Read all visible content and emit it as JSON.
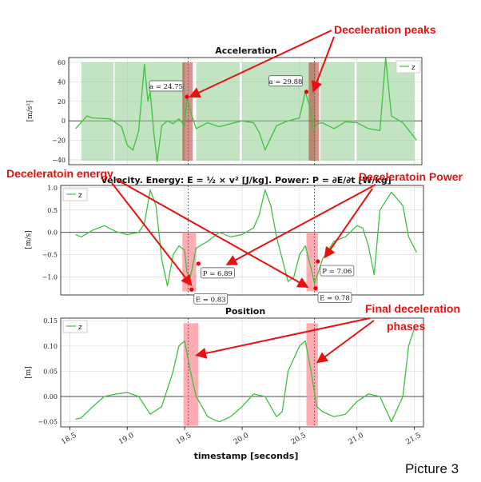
{
  "caption": "Picture 3",
  "colors": {
    "series": "#3cc23c",
    "window_fill": "#8fce8f",
    "peak_band": "#b03a2e",
    "phase_fill": "#ff9ea6",
    "annotation": "#e8110f",
    "guide": "#5a5ae0"
  },
  "annotations": {
    "decel_peaks": "Deceleration peaks",
    "decel_energy": "Deceleratoin energy",
    "decel_power": "Deceleratoin Power",
    "final_phases_1": "Final deceleration",
    "final_phases_2": "phases"
  },
  "xaxis": {
    "label": "timestamp [seconds]",
    "ticks": [
      "18.5",
      "19.0",
      "19.5",
      "20.0",
      "20.5",
      "21.0",
      "21.5"
    ]
  },
  "chart_data": [
    {
      "type": "line",
      "title": "Acceleration",
      "ylabel": "[m/s²]",
      "xlim": [
        18.4,
        21.6
      ],
      "ylim": [
        -45,
        65
      ],
      "yticks": [
        "−40",
        "−20",
        "0",
        "20",
        "40",
        "60"
      ],
      "legend": "top-right",
      "grid": true,
      "series": [
        {
          "name": "z",
          "x": [
            18.55,
            18.65,
            18.7,
            18.85,
            18.95,
            19.0,
            19.05,
            19.1,
            19.15,
            19.18,
            19.2,
            19.23,
            19.26,
            19.3,
            19.35,
            19.4,
            19.45,
            19.5,
            19.52,
            19.55,
            19.6,
            19.7,
            19.8,
            19.9,
            20.0,
            20.1,
            20.15,
            20.2,
            20.3,
            20.4,
            20.5,
            20.55,
            20.6,
            20.62,
            20.65,
            20.7,
            20.8,
            20.9,
            21.0,
            21.1,
            21.2,
            21.25,
            21.3,
            21.4,
            21.52
          ],
          "y": [
            -8,
            5,
            3,
            2,
            -6,
            -25,
            -30,
            -10,
            58,
            20,
            30,
            -10,
            -42,
            -5,
            0,
            -3,
            2,
            -5,
            24.75,
            10,
            -8,
            -2,
            -6,
            -3,
            0,
            -2,
            -12,
            -30,
            -5,
            0,
            3,
            29.88,
            10,
            -10,
            -3,
            -2,
            -8,
            -1,
            -2,
            -8,
            -10,
            65,
            5,
            -2,
            -20
          ]
        }
      ],
      "shaded_windows": [
        [
          18.6,
          18.88
        ],
        [
          18.89,
          19.5
        ],
        [
          19.6,
          19.98
        ],
        [
          20.0,
          20.64
        ],
        [
          20.68,
          20.98
        ],
        [
          21.0,
          21.5
        ]
      ],
      "peak_bands": [
        [
          19.48,
          19.57
        ],
        [
          20.58,
          20.67
        ]
      ],
      "vlines": [
        19.53,
        20.63
      ],
      "labels": [
        {
          "text": "a = 24.75",
          "x": 19.52,
          "y": 24.75
        },
        {
          "text": "a = 29.88",
          "x": 20.56,
          "y": 29.88
        }
      ]
    },
    {
      "type": "line",
      "title": "Velocity. Energy: E = ½ × v² [J/kg]. Power: P = ∂E/∂t [W/kg]",
      "ylabel": "[m/s]",
      "xlim": [
        18.4,
        21.6
      ],
      "ylim": [
        -1.4,
        1.05
      ],
      "yticks": [
        "−1.0",
        "−0.5",
        "0.0",
        "0.5",
        "1.0"
      ],
      "legend": "top-left",
      "grid": true,
      "series": [
        {
          "name": "z",
          "x": [
            18.55,
            18.6,
            18.7,
            18.8,
            18.9,
            19.0,
            19.1,
            19.15,
            19.2,
            19.25,
            19.28,
            19.3,
            19.35,
            19.4,
            19.45,
            19.5,
            19.52,
            19.55,
            19.6,
            19.7,
            19.8,
            19.9,
            20.0,
            20.1,
            20.15,
            20.2,
            20.25,
            20.3,
            20.35,
            20.4,
            20.45,
            20.5,
            20.55,
            20.6,
            20.63,
            20.7,
            20.8,
            20.9,
            21.0,
            21.05,
            21.1,
            21.15,
            21.2,
            21.3,
            21.4,
            21.45,
            21.52
          ],
          "y": [
            -0.05,
            -0.1,
            0.05,
            0.15,
            0.02,
            -0.05,
            0.0,
            0.2,
            0.95,
            0.6,
            -0.1,
            -0.6,
            -1.2,
            -0.5,
            -0.3,
            -0.4,
            -0.9,
            -1.0,
            -0.35,
            -0.2,
            0.0,
            -0.1,
            -0.05,
            0.1,
            0.4,
            0.95,
            0.6,
            -0.1,
            -0.6,
            -1.1,
            -1.0,
            -0.5,
            -0.3,
            -0.8,
            -1.15,
            -0.6,
            -0.2,
            -0.1,
            0.15,
            0.1,
            -0.3,
            -0.95,
            0.5,
            0.9,
            0.6,
            -0.1,
            -0.45
          ]
        }
      ],
      "shaded_windows": [
        [
          19.48,
          19.6
        ],
        [
          20.56,
          20.66
        ]
      ],
      "vlines": [
        19.53,
        20.63
      ],
      "labels": [
        {
          "text": "P = 6.89",
          "x": 19.62,
          "y": -0.7
        },
        {
          "text": "E = 0.83",
          "x": 19.56,
          "y": -1.28
        },
        {
          "text": "P = 7.06",
          "x": 20.66,
          "y": -0.65
        },
        {
          "text": "E = 0.78",
          "x": 20.64,
          "y": -1.25
        }
      ]
    },
    {
      "type": "line",
      "title": "Position",
      "ylabel": "[m]",
      "xlim": [
        18.4,
        21.6
      ],
      "ylim": [
        -0.06,
        0.155
      ],
      "yticks": [
        "−0.05",
        "0.00",
        "0.05",
        "0.10",
        "0.15"
      ],
      "legend": "top-left",
      "grid": true,
      "series": [
        {
          "name": "z",
          "x": [
            18.55,
            18.6,
            18.7,
            18.8,
            18.9,
            19.0,
            19.1,
            19.2,
            19.3,
            19.4,
            19.45,
            19.5,
            19.55,
            19.6,
            19.7,
            19.8,
            19.9,
            20.0,
            20.1,
            20.2,
            20.3,
            20.35,
            20.4,
            20.5,
            20.55,
            20.6,
            20.65,
            20.7,
            20.8,
            20.9,
            21.0,
            21.1,
            21.2,
            21.3,
            21.4,
            21.45,
            21.5,
            21.52
          ],
          "y": [
            -0.045,
            -0.042,
            -0.02,
            0.0,
            0.005,
            0.008,
            0.0,
            -0.035,
            -0.02,
            0.05,
            0.1,
            0.11,
            0.05,
            0.0,
            -0.04,
            -0.05,
            -0.04,
            -0.02,
            0.005,
            0.0,
            -0.04,
            -0.03,
            0.05,
            0.1,
            0.11,
            0.05,
            -0.02,
            -0.03,
            -0.04,
            -0.035,
            -0.01,
            0.005,
            0.0,
            -0.05,
            0.0,
            0.1,
            0.135,
            0.13
          ]
        }
      ],
      "shaded_windows": [
        [
          19.49,
          19.62
        ],
        [
          20.56,
          20.66
        ]
      ],
      "vlines": [
        19.53,
        20.63
      ],
      "labels": []
    }
  ]
}
